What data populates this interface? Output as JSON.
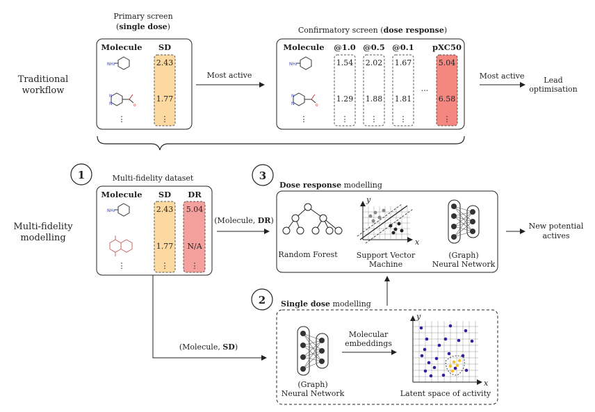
{
  "traditional": {
    "side_label_line1": "Traditional",
    "side_label_line2": "workflow",
    "primary": {
      "title_line1": "Primary screen",
      "title_prefix": "(",
      "title_bold": "single dose",
      "title_suffix": ")",
      "col_molecule": "Molecule",
      "col_sd": "SD",
      "values": [
        "2.43",
        "1.77"
      ],
      "ellipsis": "⋮"
    },
    "arrow_label": "Most active",
    "confirmatory": {
      "title_prefix": "Confirmatory screen (",
      "title_bold": "dose response",
      "title_suffix": ")",
      "col_molecule": "Molecule",
      "col_10": "@1.0",
      "col_05": "@0.5",
      "col_01": "@0.1",
      "col_pxc50": "pXC50",
      "row1": [
        "1.54",
        "2.02",
        "1.67",
        "5.04"
      ],
      "row2": [
        "1.29",
        "1.88",
        "1.81",
        "6.58"
      ],
      "dots": "...",
      "ellipsis": "⋮"
    },
    "arrow_label_2": "Most active",
    "lead_line1": "Lead",
    "lead_line2": "optimisation"
  },
  "multi": {
    "side_label_line1": "Multi-fidelity",
    "side_label_line2": "modelling",
    "step1": "1",
    "step2": "2",
    "step3": "3",
    "dataset": {
      "title": "Multi-fidelity dataset",
      "col_molecule": "Molecule",
      "col_sd": "SD",
      "col_dr": "DR",
      "sd_values": [
        "2.43",
        "1.77"
      ],
      "dr_values": [
        "5.04",
        "N/A"
      ],
      "ellipsis": "⋮"
    },
    "arrow_dr_prefix": "(Molecule, ",
    "arrow_dr_bold": "DR",
    "arrow_dr_suffix": ")",
    "arrow_sd_prefix": "(Molecule, ",
    "arrow_sd_bold": "SD",
    "arrow_sd_suffix": ")",
    "dose_response": {
      "title_bold": "Dose response",
      "title_rest": " modelling",
      "rf_label": "Random Forest",
      "svm_line1": "Support Vector",
      "svm_line2": "Machine",
      "nn_line1": "(Graph)",
      "nn_line2": "Neural Network",
      "axis_x": "x",
      "axis_y": "y"
    },
    "output_line1": "New potential",
    "output_line2": "actives",
    "single_dose": {
      "title_bold": "Single dose",
      "title_rest": " modelling",
      "nn_line1": "(Graph)",
      "nn_line2": "Neural Network",
      "emb_line1": "Molecular",
      "emb_line2": "embeddings",
      "latent_label": "Latent space of activity",
      "axis_x": "x",
      "axis_y": "y"
    }
  },
  "colors": {
    "sd_fill": "#fcd9a0",
    "dr_fill": "#f4a09c",
    "pxc50_fill": "#f4877f",
    "latent_point": "#3a1a9a",
    "latent_highlight": "#f2c230"
  }
}
